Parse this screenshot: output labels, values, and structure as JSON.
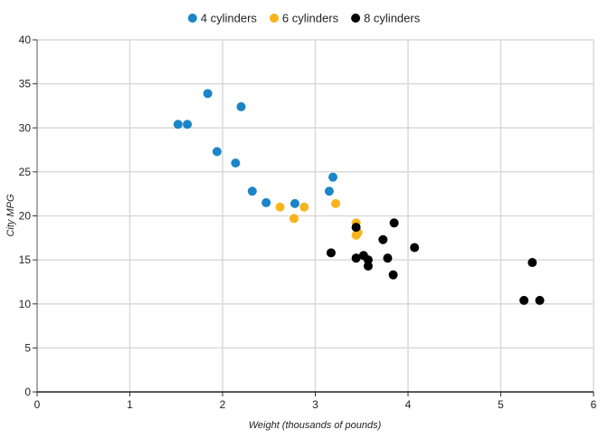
{
  "chart_data": {
    "type": "scatter",
    "xlabel": "Weight (thousands of pounds)",
    "ylabel": "City MPG",
    "xlim": [
      0,
      6
    ],
    "ylim": [
      0,
      40
    ],
    "xticks": [
      "0",
      "1",
      "2",
      "3",
      "4",
      "5",
      "6"
    ],
    "yticks": [
      "0",
      "5",
      "10",
      "15",
      "20",
      "25",
      "30",
      "35",
      "40"
    ],
    "grid": true,
    "legend": "top-center",
    "series": [
      {
        "name": "4 cylinders",
        "color": "#1a85c8",
        "points": [
          [
            1.52,
            30.4
          ],
          [
            1.62,
            30.4
          ],
          [
            1.84,
            33.9
          ],
          [
            1.94,
            27.3
          ],
          [
            2.14,
            26.0
          ],
          [
            2.2,
            32.4
          ],
          [
            2.32,
            22.8
          ],
          [
            2.47,
            21.5
          ],
          [
            2.78,
            21.4
          ],
          [
            3.15,
            22.8
          ],
          [
            3.19,
            24.4
          ]
        ]
      },
      {
        "name": "6 cylinders",
        "color": "#f7b41d",
        "points": [
          [
            2.62,
            21.0
          ],
          [
            2.77,
            19.7
          ],
          [
            2.88,
            21.0
          ],
          [
            3.22,
            21.4
          ],
          [
            3.44,
            19.2
          ],
          [
            3.44,
            17.8
          ],
          [
            3.46,
            18.1
          ]
        ]
      },
      {
        "name": "8 cylinders",
        "color": "#000000",
        "points": [
          [
            3.17,
            15.8
          ],
          [
            3.44,
            18.7
          ],
          [
            3.44,
            15.2
          ],
          [
            3.52,
            15.5
          ],
          [
            3.57,
            15.0
          ],
          [
            3.57,
            14.3
          ],
          [
            3.73,
            17.3
          ],
          [
            3.78,
            15.2
          ],
          [
            3.84,
            13.3
          ],
          [
            3.85,
            19.2
          ],
          [
            4.07,
            16.4
          ],
          [
            5.25,
            10.4
          ],
          [
            5.34,
            14.7
          ],
          [
            5.42,
            10.4
          ]
        ]
      }
    ]
  }
}
